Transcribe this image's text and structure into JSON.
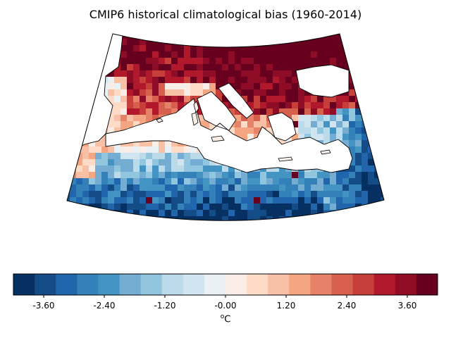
{
  "title": "CMIP6 historical climatological bias (1960-2014)",
  "colorbar": {
    "min": -4.2,
    "max": 4.2,
    "step": 0.4,
    "colors": [
      "#053061",
      "#134c87",
      "#2166ac",
      "#3480b9",
      "#4393c3",
      "#74add1",
      "#92c5de",
      "#bbdaea",
      "#d1e5f0",
      "#eaf1f4",
      "#f9ede7",
      "#fddbc7",
      "#f8c0a4",
      "#f4a582",
      "#e58267",
      "#d6604d",
      "#c63f3b",
      "#b2182b",
      "#8e0c25",
      "#67001f"
    ],
    "tick_labels": [
      "-3.60",
      "-2.40",
      "-1.20",
      "-0.00",
      "1.20",
      "2.40",
      "3.60"
    ],
    "tick_values": [
      -3.6,
      -2.4,
      -1.2,
      0.0,
      1.2,
      2.4,
      3.6
    ],
    "unit_label": "°C",
    "unit_prefix": "o",
    "unit_suffix": "C"
  },
  "map": {
    "projection": "conic",
    "land_color": "#ffffff",
    "coast_color": "#000000"
  }
}
